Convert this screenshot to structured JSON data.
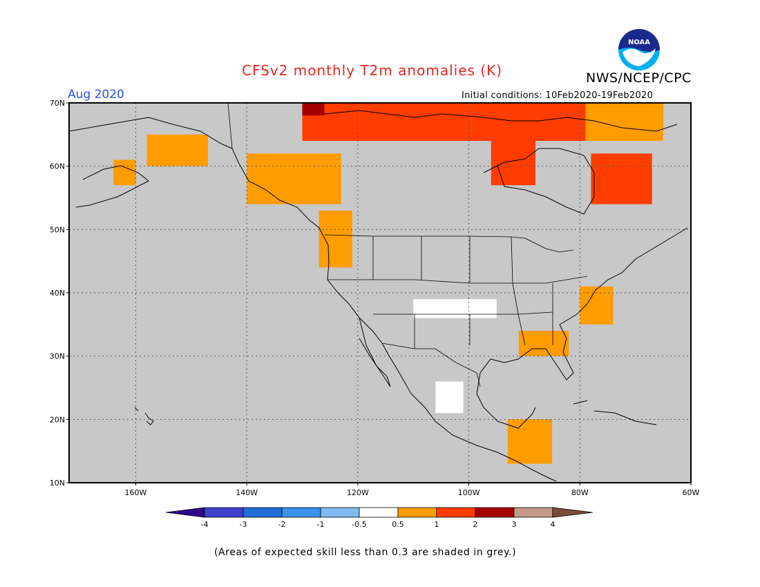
{
  "header": {
    "title": "CFSv2 monthly T2m anomalies (K)",
    "agency": "NWS/NCEP/CPC",
    "valid_month": "Aug 2020",
    "initial_conditions": "Initial conditions: 10Feb2020-19Feb2020"
  },
  "logo": {
    "icon": "noaa-logo-icon",
    "text": "NOAA"
  },
  "map": {
    "lon_range": [
      -172,
      -60
    ],
    "lat_range": [
      10,
      70
    ],
    "lat_ticks": [
      "10N",
      "20N",
      "30N",
      "40N",
      "50N",
      "60N",
      "70N"
    ],
    "lon_ticks": [
      "160W",
      "140W",
      "120W",
      "100W",
      "80W",
      "60W"
    ],
    "background_color": "#c8c8c8",
    "regions": [
      {
        "name": "Alaska interior",
        "lon": [
          -158,
          -147
        ],
        "lat": [
          60,
          65
        ],
        "category": "0.5-1",
        "color": "#ff9c00"
      },
      {
        "name": "Alaska southwest coast",
        "lon": [
          -164,
          -160
        ],
        "lat": [
          57,
          61
        ],
        "category": "0.5-1",
        "color": "#ff9c00"
      },
      {
        "name": "Yukon / British Columbia",
        "lon": [
          -140,
          -123
        ],
        "lat": [
          54,
          62
        ],
        "category": "0.5-1",
        "color": "#ff9c00"
      },
      {
        "name": "Pacific Northwest coast",
        "lon": [
          -127,
          -121
        ],
        "lat": [
          44,
          53
        ],
        "category": "0.5-1",
        "color": "#ff9c00"
      },
      {
        "name": "Northern Canada",
        "lon": [
          -130,
          -75
        ],
        "lat": [
          64,
          70
        ],
        "category": "1-2",
        "color": "#ff3d00"
      },
      {
        "name": "Hudson Bay west",
        "lon": [
          -96,
          -88
        ],
        "lat": [
          57,
          64
        ],
        "category": "1-2",
        "color": "#ff3d00"
      },
      {
        "name": "Quebec / Labrador",
        "lon": [
          -78,
          -67
        ],
        "lat": [
          54,
          62
        ],
        "category": "1-2",
        "color": "#ff3d00"
      },
      {
        "name": "Baffin region",
        "lon": [
          -79,
          -65
        ],
        "lat": [
          64,
          70
        ],
        "category": "0.5-1",
        "color": "#ff9c00"
      },
      {
        "name": "Northern Yukon peak",
        "lon": [
          -130,
          -126
        ],
        "lat": [
          68,
          70
        ],
        "category": "2-3",
        "color": "#a50000"
      },
      {
        "name": "Mid-Atlantic",
        "lon": [
          -80,
          -74
        ],
        "lat": [
          35,
          41
        ],
        "category": "0.5-1",
        "color": "#ff9c00"
      },
      {
        "name": "Southeast US",
        "lon": [
          -91,
          -82
        ],
        "lat": [
          30,
          34
        ],
        "category": "0.5-1",
        "color": "#ff9c00"
      },
      {
        "name": "Central America",
        "lon": [
          -93,
          -85
        ],
        "lat": [
          13,
          20
        ],
        "category": "0.5-1",
        "color": "#ff9c00"
      },
      {
        "name": "Mexico plateau",
        "lon": [
          -106,
          -101
        ],
        "lat": [
          21,
          26
        ],
        "category": "-0.5-0.5",
        "color": "#ffffff"
      },
      {
        "name": "Southern Plains",
        "lon": [
          -110,
          -95
        ],
        "lat": [
          36,
          39
        ],
        "category": "-0.5-0.5",
        "color": "#ffffff"
      }
    ]
  },
  "legend": {
    "ticks": [
      "-4",
      "-3",
      "-2",
      "-1",
      "-0.5",
      "0.5",
      "1",
      "2",
      "3",
      "4"
    ],
    "colors": [
      "#2a0a8c",
      "#3f3fce",
      "#1f6fd6",
      "#3d91ec",
      "#7fbaf0",
      "#ffffff",
      "#ff9c00",
      "#ff3d00",
      "#a50000",
      "#c49a8a",
      "#7a4a3a"
    ]
  },
  "footnote": "(Areas of expected skill less than 0.3 are shaded in grey.)"
}
